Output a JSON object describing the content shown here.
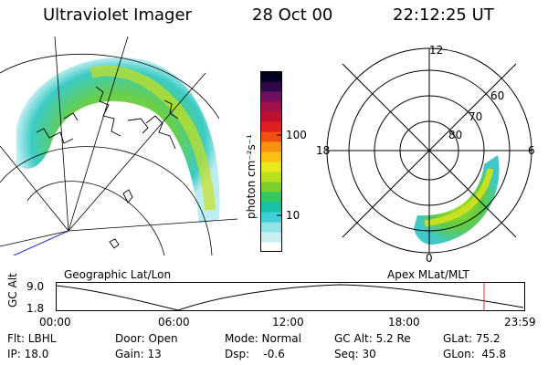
{
  "header": {
    "title": "Ultraviolet Imager",
    "date": "28 Oct 00",
    "time": "22:12:25 UT"
  },
  "geo_panel": {
    "label": "Geographic Lat/Lon"
  },
  "polar_panel": {
    "label": "Apex MLat/MLT",
    "mlt_top": "12",
    "mlt_left": "18",
    "mlt_right": "6",
    "mlt_bottom": "0",
    "lat_labels": [
      "60",
      "70",
      "80"
    ]
  },
  "colorbar": {
    "unit": "photon cm⁻²s⁻¹",
    "tick_high": "100",
    "tick_low": "10",
    "colors": [
      "#ffffff",
      "#c8f0f0",
      "#8fe2e6",
      "#40cfd8",
      "#18c0a8",
      "#30c860",
      "#7ad030",
      "#b8e020",
      "#e8e81a",
      "#f8c010",
      "#f89010",
      "#f05010",
      "#e02020",
      "#c01030",
      "#a0104a",
      "#701060",
      "#300848",
      "#000020"
    ]
  },
  "altitude_plot": {
    "ylabel": "GC Alt",
    "y_high": "9.0",
    "y_low": "1.8",
    "x_ticks": [
      "00:00",
      "06:00",
      "12:00",
      "18:00",
      "23:59"
    ],
    "marker_color": "#d03030"
  },
  "footer": {
    "row1": {
      "flt": "Flt: LBHL",
      "door": "Door: Open",
      "mode": "Mode: Normal",
      "gcalt": "GC Alt: 5.2 Re",
      "glat": "GLat: 75.2"
    },
    "row2": {
      "ip": "IP: 18.0",
      "gain": "Gain: 13",
      "dsp": "Dsp:    -0.6",
      "seq": "Seq: 30",
      "glon": "GLon:  45.8"
    }
  }
}
